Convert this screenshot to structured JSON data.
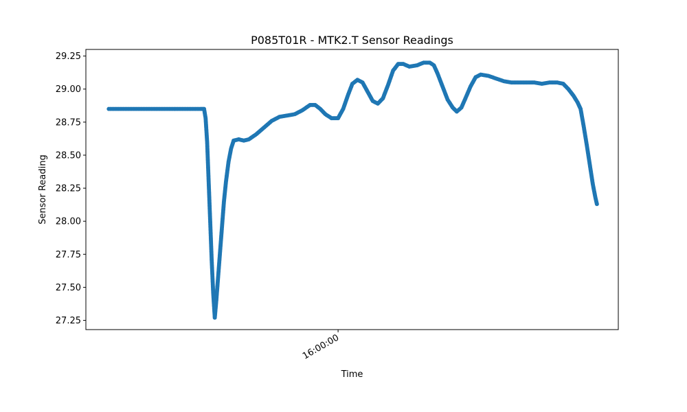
{
  "chart_data": {
    "type": "scatter",
    "title": "P085T01R - MTK2.T Sensor Readings",
    "xlabel": "Time",
    "ylabel": "Sensor Reading",
    "x_tick": {
      "label": "16:00:00",
      "value": 0.45
    },
    "xlim": [
      -0.045,
      1.0
    ],
    "ylim": [
      27.18,
      29.3
    ],
    "y_ticks": [
      27.25,
      27.5,
      27.75,
      28.0,
      28.25,
      28.5,
      28.75,
      29.0,
      29.25
    ],
    "y_tick_labels": [
      "27.25",
      "27.50",
      "27.75",
      "28.00",
      "28.25",
      "28.50",
      "28.75",
      "29.00",
      "29.25"
    ],
    "grid": false,
    "marker_color": "#1f77b4",
    "series": [
      {
        "points": [
          [
            0.0,
            28.85
          ],
          [
            0.18,
            28.85
          ],
          [
            0.187,
            28.85
          ],
          [
            0.19,
            28.78
          ],
          [
            0.193,
            28.6
          ],
          [
            0.196,
            28.3
          ],
          [
            0.199,
            28.0
          ],
          [
            0.202,
            27.7
          ],
          [
            0.205,
            27.45
          ],
          [
            0.208,
            27.27
          ],
          [
            0.211,
            27.4
          ],
          [
            0.214,
            27.55
          ],
          [
            0.218,
            27.75
          ],
          [
            0.222,
            27.95
          ],
          [
            0.226,
            28.15
          ],
          [
            0.23,
            28.3
          ],
          [
            0.235,
            28.45
          ],
          [
            0.24,
            28.55
          ],
          [
            0.245,
            28.61
          ],
          [
            0.255,
            28.62
          ],
          [
            0.265,
            28.61
          ],
          [
            0.275,
            28.62
          ],
          [
            0.29,
            28.66
          ],
          [
            0.305,
            28.71
          ],
          [
            0.32,
            28.76
          ],
          [
            0.335,
            28.79
          ],
          [
            0.35,
            28.8
          ],
          [
            0.365,
            28.81
          ],
          [
            0.38,
            28.84
          ],
          [
            0.395,
            28.88
          ],
          [
            0.405,
            28.88
          ],
          [
            0.415,
            28.85
          ],
          [
            0.425,
            28.81
          ],
          [
            0.437,
            28.78
          ],
          [
            0.45,
            28.78
          ],
          [
            0.46,
            28.85
          ],
          [
            0.47,
            28.96
          ],
          [
            0.478,
            29.04
          ],
          [
            0.488,
            29.07
          ],
          [
            0.498,
            29.05
          ],
          [
            0.508,
            28.98
          ],
          [
            0.518,
            28.91
          ],
          [
            0.528,
            28.89
          ],
          [
            0.538,
            28.93
          ],
          [
            0.548,
            29.03
          ],
          [
            0.558,
            29.14
          ],
          [
            0.568,
            29.19
          ],
          [
            0.578,
            29.19
          ],
          [
            0.59,
            29.17
          ],
          [
            0.605,
            29.18
          ],
          [
            0.618,
            29.2
          ],
          [
            0.63,
            29.2
          ],
          [
            0.638,
            29.18
          ],
          [
            0.645,
            29.12
          ],
          [
            0.655,
            29.02
          ],
          [
            0.665,
            28.92
          ],
          [
            0.675,
            28.86
          ],
          [
            0.683,
            28.83
          ],
          [
            0.692,
            28.86
          ],
          [
            0.7,
            28.93
          ],
          [
            0.71,
            29.02
          ],
          [
            0.72,
            29.09
          ],
          [
            0.73,
            29.11
          ],
          [
            0.745,
            29.1
          ],
          [
            0.76,
            29.08
          ],
          [
            0.775,
            29.06
          ],
          [
            0.79,
            29.05
          ],
          [
            0.805,
            29.05
          ],
          [
            0.82,
            29.05
          ],
          [
            0.835,
            29.05
          ],
          [
            0.85,
            29.04
          ],
          [
            0.865,
            29.05
          ],
          [
            0.88,
            29.05
          ],
          [
            0.892,
            29.04
          ],
          [
            0.902,
            29.0
          ],
          [
            0.912,
            28.95
          ],
          [
            0.92,
            28.9
          ],
          [
            0.926,
            28.85
          ],
          [
            0.932,
            28.72
          ],
          [
            0.938,
            28.58
          ],
          [
            0.944,
            28.43
          ],
          [
            0.95,
            28.28
          ],
          [
            0.955,
            28.18
          ],
          [
            0.958,
            28.13
          ]
        ]
      }
    ]
  }
}
